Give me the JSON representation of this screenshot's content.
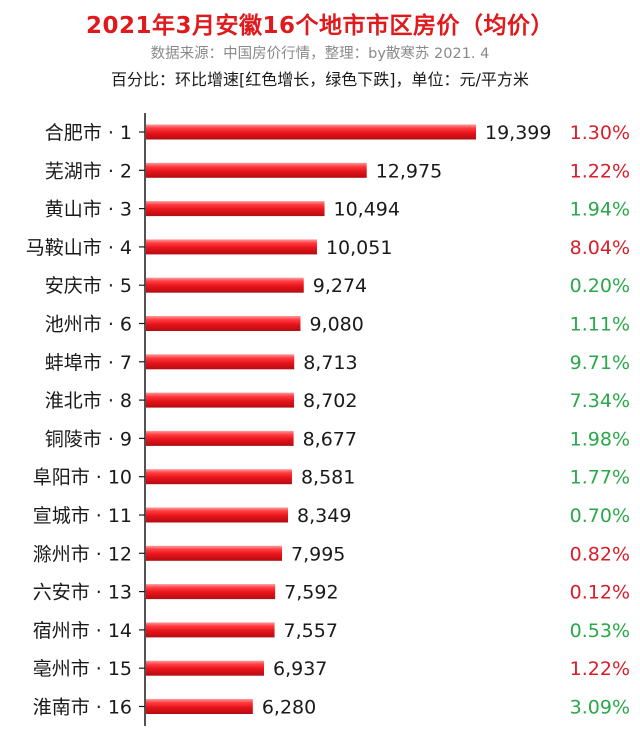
{
  "header": {
    "title": "2021年3月安徽16个地市市区房价（均价）",
    "subtitle": "数据来源：中国房价行情，整理：by散寒苏  2021. 4",
    "note": "百分比：环比增速[红色增长，绿色下跌]，单位：元/平方米"
  },
  "colors": {
    "bar": "#e8151b",
    "up": "#d81e2a",
    "down": "#2aa84a",
    "title": "#e0191c"
  },
  "chart_data": {
    "type": "bar",
    "orientation": "horizontal",
    "categories": [
      "合肥市 · 1",
      "芜湖市 · 2",
      "黄山市 · 3",
      "马鞍山市 · 4",
      "安庆市 · 5",
      "池州市 · 6",
      "蚌埠市 · 7",
      "淮北市 · 8",
      "铜陵市 · 9",
      "阜阳市 · 10",
      "宣城市 · 11",
      "滁州市 · 12",
      "六安市 · 13",
      "宿州市 · 14",
      "亳州市 · 15",
      "淮南市 · 16"
    ],
    "values": [
      19399,
      12975,
      10494,
      10051,
      9274,
      9080,
      8713,
      8702,
      8677,
      8581,
      8349,
      7995,
      7592,
      7557,
      6937,
      6280
    ],
    "value_labels": [
      "19,399",
      "12,975",
      "10,494",
      "10,051",
      "9,274",
      "9,080",
      "8,713",
      "8,702",
      "8,677",
      "8,581",
      "8,349",
      "7,995",
      "7,592",
      "7,557",
      "6,937",
      "6,280"
    ],
    "growth_labels": [
      "1.30%",
      "1.22%",
      "1.94%",
      "8.04%",
      "0.20%",
      "1.11%",
      "9.71%",
      "7.34%",
      "1.98%",
      "1.77%",
      "0.70%",
      "0.82%",
      "0.12%",
      "0.53%",
      "1.22%",
      "3.09%"
    ],
    "growth_colors": [
      "red",
      "red",
      "green",
      "red",
      "green",
      "green",
      "green",
      "green",
      "green",
      "green",
      "green",
      "red",
      "red",
      "green",
      "red",
      "green"
    ],
    "xlim": [
      0,
      19399
    ],
    "grid": false,
    "legend": "none"
  }
}
